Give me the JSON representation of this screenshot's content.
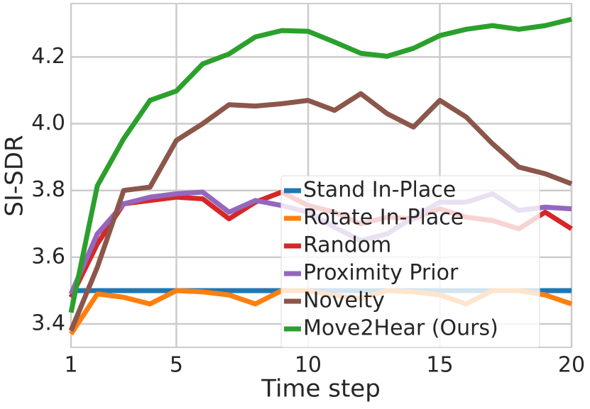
{
  "chart_data": {
    "type": "line",
    "x_label": "Time step",
    "y_label": "SI-SDR",
    "x": [
      1,
      2,
      3,
      4,
      5,
      6,
      7,
      8,
      9,
      10,
      11,
      12,
      13,
      14,
      15,
      16,
      17,
      18,
      19,
      20
    ],
    "xlim": [
      1,
      20
    ],
    "xticks": [
      1,
      5,
      10,
      15,
      20
    ],
    "ylim": [
      3.33,
      4.36
    ],
    "yticks": [
      3.4,
      3.6,
      3.8,
      {
        "value": 4,
        "label": "4.0"
      },
      4.2
    ],
    "grid": true,
    "legend": "lower right",
    "series": [
      {
        "name": "Stand In-Place",
        "color": "#1f77b4",
        "values": [
          3.5,
          3.5,
          3.5,
          3.5,
          3.5,
          3.5,
          3.5,
          3.5,
          3.5,
          3.5,
          3.5,
          3.5,
          3.5,
          3.5,
          3.5,
          3.5,
          3.5,
          3.5,
          3.5,
          3.5
        ]
      },
      {
        "name": "Rotate In-Place",
        "color": "#ff7f0e",
        "values": [
          3.37,
          3.49,
          3.48,
          3.46,
          3.5,
          3.496,
          3.487,
          3.46,
          3.5,
          3.5,
          3.485,
          3.477,
          3.5,
          3.496,
          3.487,
          3.46,
          3.5,
          3.5,
          3.487,
          3.46
        ]
      },
      {
        "name": "Random",
        "color": "#d62728",
        "values": [
          3.48,
          3.64,
          3.76,
          3.77,
          3.78,
          3.775,
          3.715,
          3.765,
          3.795,
          3.755,
          3.735,
          3.7,
          3.72,
          3.715,
          3.745,
          3.72,
          3.71,
          3.685,
          3.735,
          3.685
        ]
      },
      {
        "name": "Proximity Prior",
        "color": "#9467bd",
        "values": [
          3.49,
          3.67,
          3.76,
          3.78,
          3.79,
          3.795,
          3.735,
          3.77,
          3.755,
          3.735,
          3.69,
          3.65,
          3.67,
          3.72,
          3.765,
          3.765,
          3.79,
          3.74,
          3.75,
          3.745
        ]
      },
      {
        "name": "Novelty",
        "color": "#8c564b",
        "values": [
          3.38,
          3.57,
          3.8,
          3.81,
          3.95,
          4.0,
          4.057,
          4.053,
          4.06,
          4.07,
          4.04,
          4.09,
          4.03,
          3.99,
          4.07,
          4.02,
          3.94,
          3.87,
          3.85,
          3.82
        ]
      },
      {
        "name": "Move2Hear (Ours)",
        "color": "#2ca02c",
        "values": [
          3.434,
          3.814,
          3.955,
          4.07,
          4.098,
          4.179,
          4.209,
          4.26,
          4.279,
          4.277,
          4.245,
          4.211,
          4.202,
          4.226,
          4.264,
          4.283,
          4.294,
          4.283,
          4.294,
          4.313
        ]
      }
    ]
  }
}
